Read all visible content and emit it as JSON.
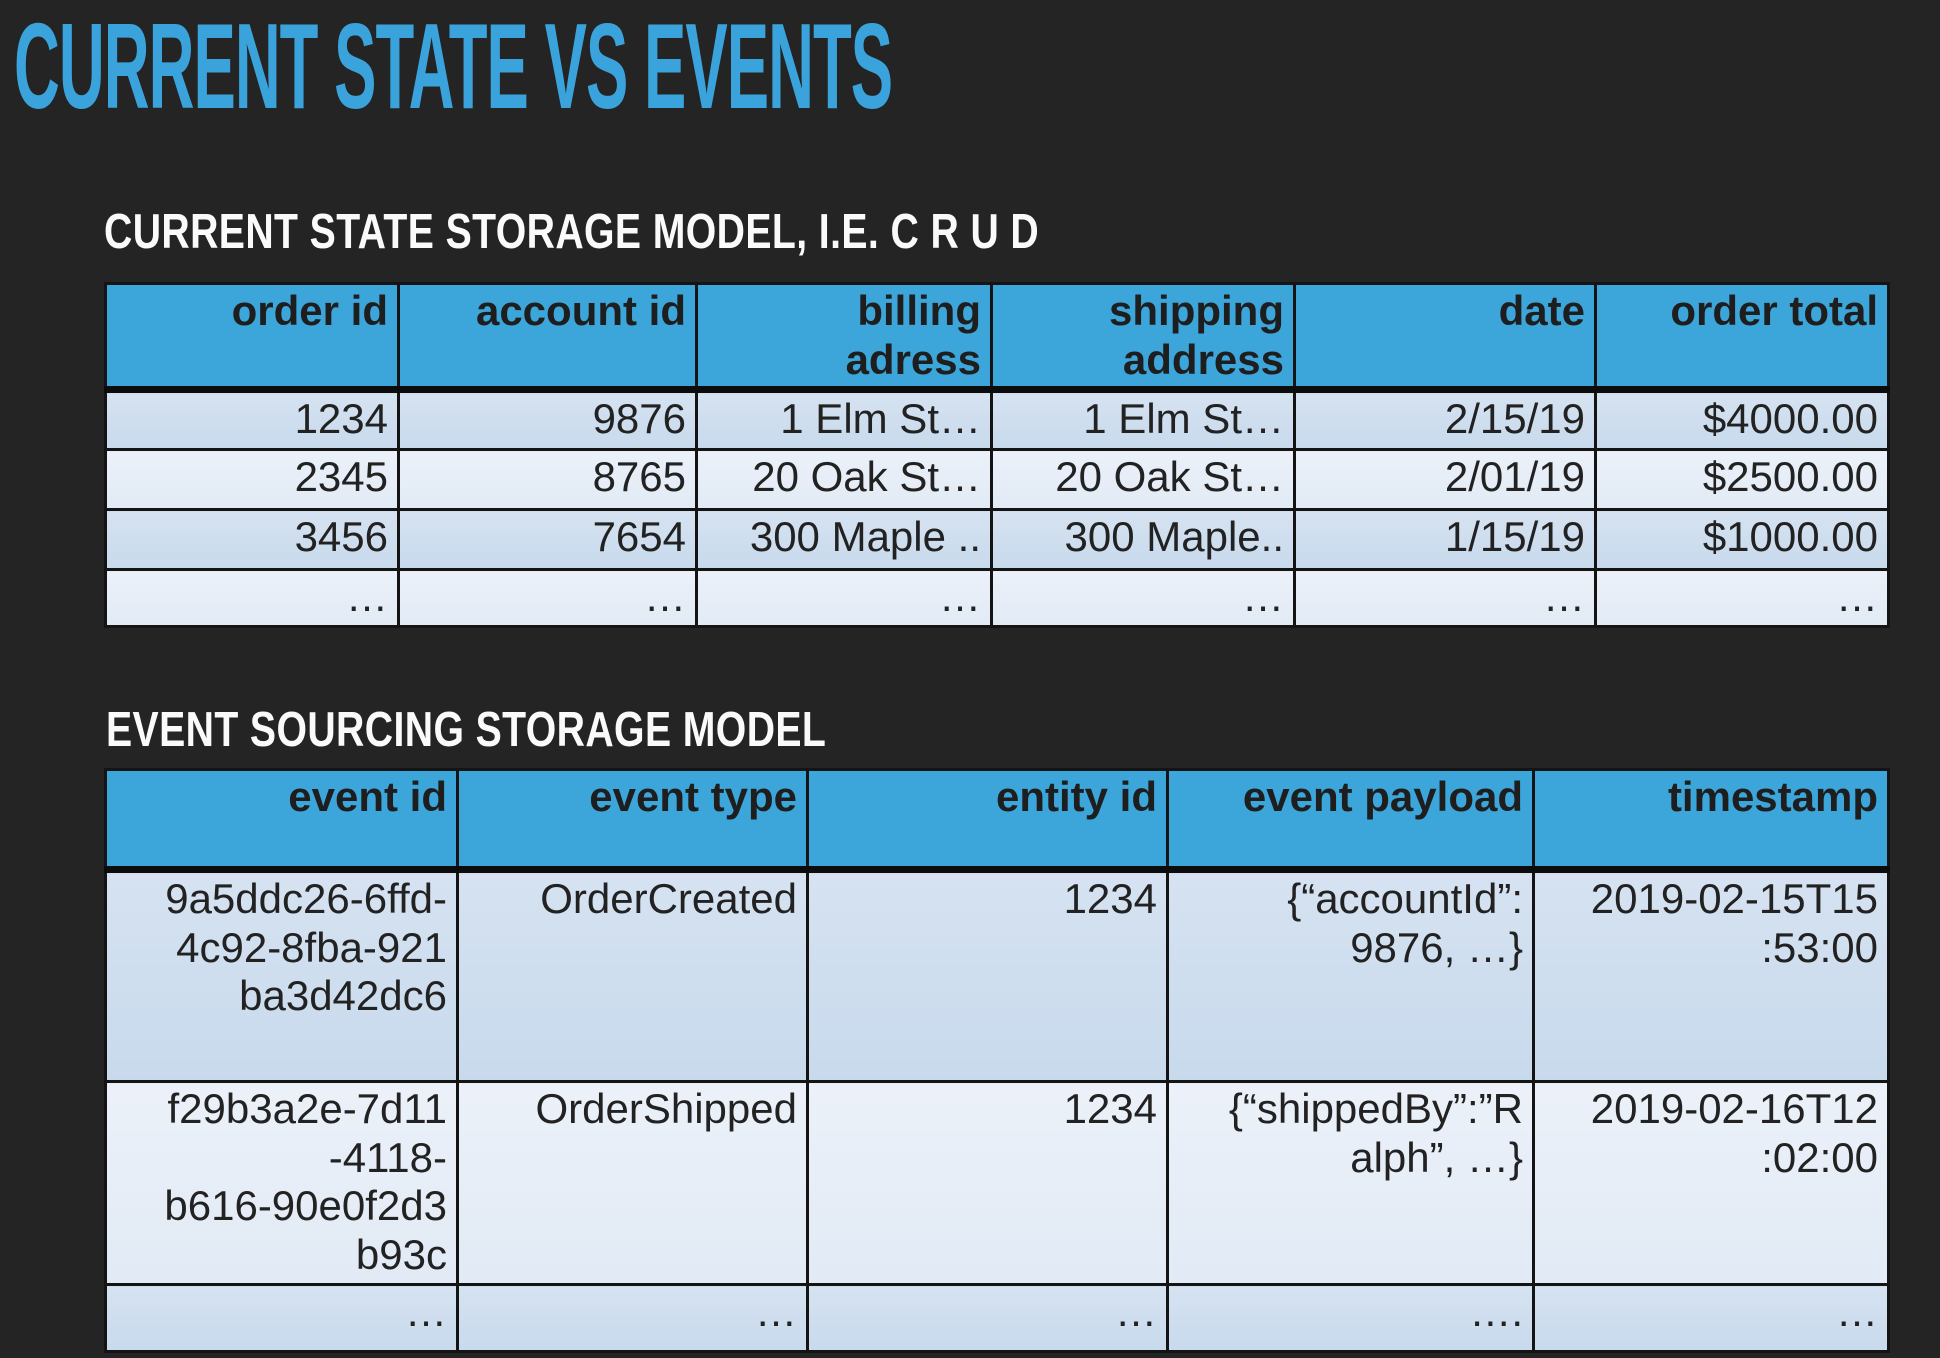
{
  "title": "CURRENT STATE VS EVENTS",
  "colors": {
    "background": "#242424",
    "accent_blue": "#3ba3dc",
    "table_header_blue": "#3ca6db",
    "row_dark": "#cbddee",
    "row_light": "#e7eef7",
    "heading_white": "#fafafa"
  },
  "crud_section": {
    "heading": "CURRENT STATE STORAGE MODEL, I.E. C R U D",
    "table": {
      "columns": [
        "order id",
        "account id",
        "billing\nadress",
        "shipping\naddress",
        "date",
        "order total"
      ],
      "rows": [
        [
          "1234",
          "9876",
          "1 Elm St…",
          "1 Elm St…",
          "2/15/19",
          "$4000.00"
        ],
        [
          "2345",
          "8765",
          "20 Oak St…",
          "20 Oak St…",
          "2/01/19",
          "$2500.00"
        ],
        [
          "3456",
          "7654",
          "300 Maple  ..",
          "300 Maple..",
          "1/15/19",
          "$1000.00"
        ],
        [
          "…",
          "…",
          "…",
          "…",
          "…",
          "…"
        ]
      ]
    }
  },
  "event_section": {
    "heading": "EVENT SOURCING STORAGE MODEL",
    "table": {
      "columns": [
        "event id",
        "event type",
        "entity id",
        "event payload",
        "timestamp"
      ],
      "rows": [
        [
          "9a5ddc26-6ffd-\n4c92-8fba-921\nba3d42dc6",
          "OrderCreated",
          "1234",
          "{“accountId”:\n9876, …}",
          "2019-02-15T15\n:53:00"
        ],
        [
          "f29b3a2e-7d11\n-4118-\nb616-90e0f2d3\nb93c",
          "OrderShipped",
          "1234",
          "{“shippedBy”:”R\nalph”, …}",
          "2019-02-16T12\n:02:00"
        ],
        [
          "…",
          "…",
          "…",
          "….",
          "…"
        ]
      ]
    }
  }
}
